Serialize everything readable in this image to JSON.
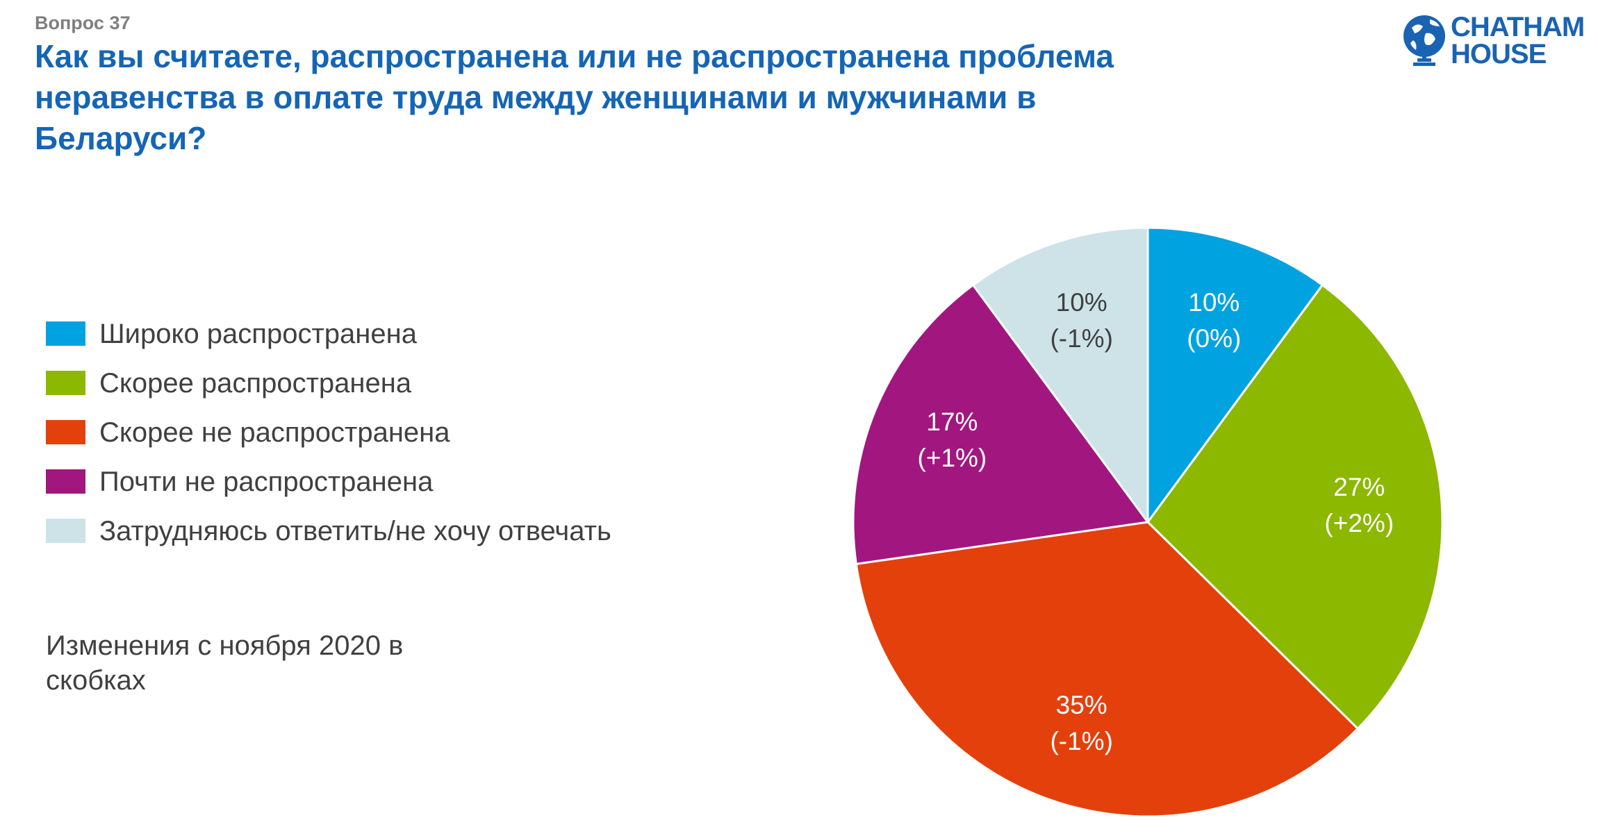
{
  "header": {
    "question_number": "Вопрос 37",
    "title": "Как вы считаете, распространена или не распространена проблема неравенства в оплате труда между женщинами и мужчинами в Беларуси?"
  },
  "logo": {
    "line1": "CHATHAM",
    "line2": "HOUSE",
    "color": "#1a63b3"
  },
  "footnote": "Изменения с ноября 2020 в скобках",
  "chart_data": {
    "type": "pie",
    "start_angle_deg": 0,
    "direction": "clockwise",
    "slices": [
      {
        "label": "Широко распространена",
        "value": 10,
        "value_label": "10%",
        "change_label": "(0%)",
        "color": "#00a3e0",
        "text_color": "#ffffff"
      },
      {
        "label": "Скорее распространена",
        "value": 27,
        "value_label": "27%",
        "change_label": "(+2%)",
        "color": "#8cb800",
        "text_color": "#ffffff"
      },
      {
        "label": "Скорее не распространена",
        "value": 35,
        "value_label": "35%",
        "change_label": "(-1%)",
        "color": "#e4400c",
        "text_color": "#ffffff"
      },
      {
        "label": "Почти не распространена",
        "value": 17,
        "value_label": "17%",
        "change_label": "(+1%)",
        "color": "#a2177f",
        "text_color": "#ffffff"
      },
      {
        "label": "Затрудняюсь ответить/не хочу отвечать",
        "value": 10,
        "value_label": "10%",
        "change_label": "(-1%)",
        "color": "#cde3e8",
        "text_color": "#404040"
      }
    ]
  }
}
